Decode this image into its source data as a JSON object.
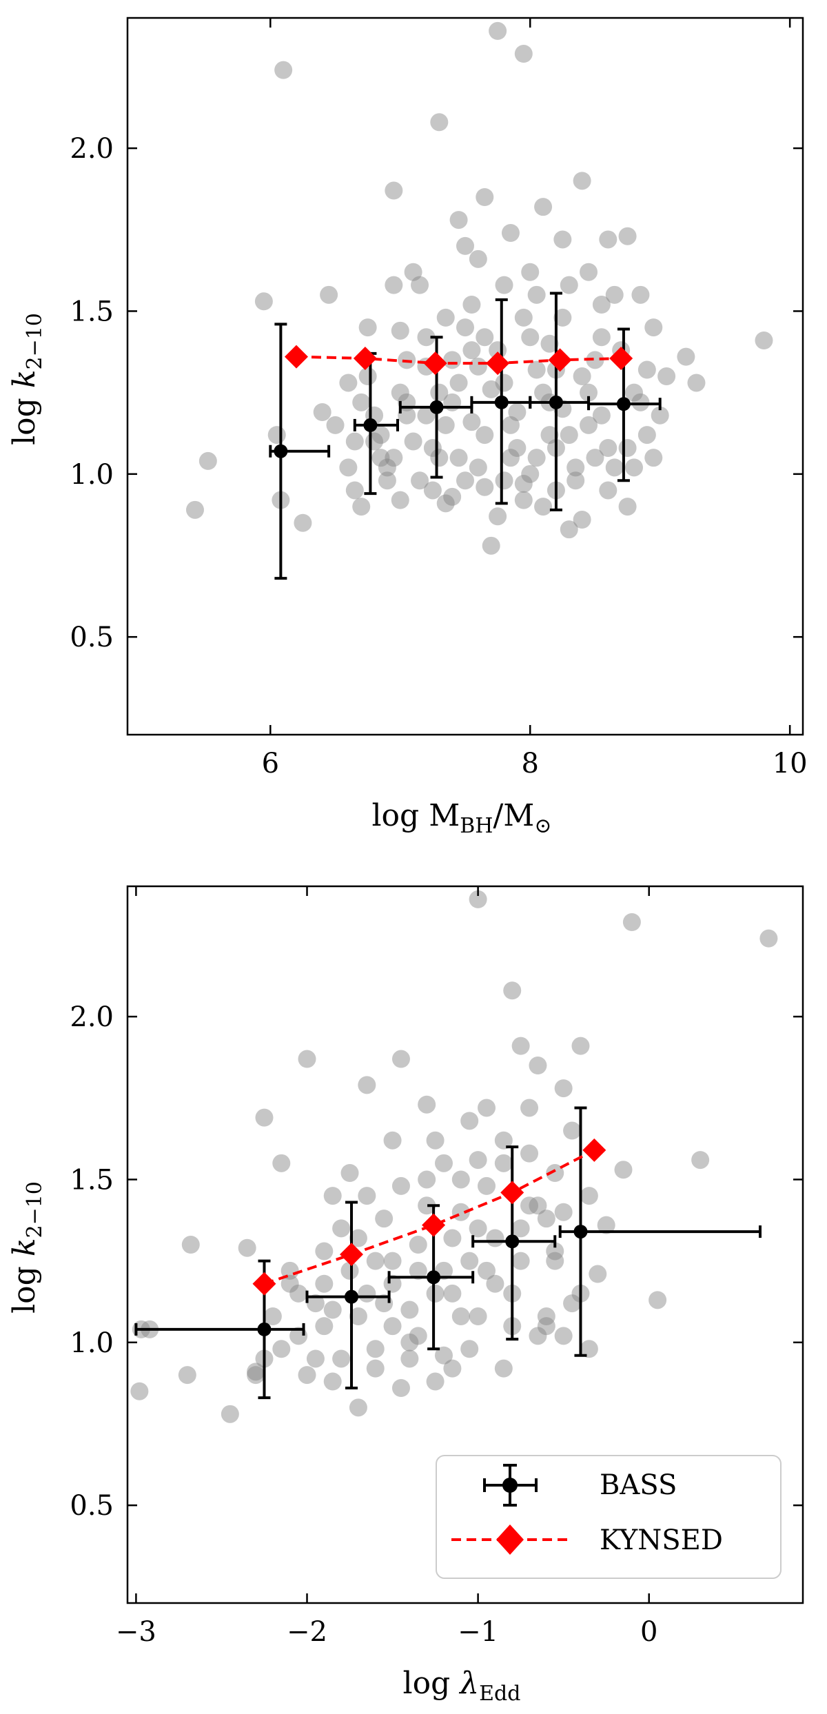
{
  "chart_data": [
    {
      "type": "scatter",
      "title": "",
      "xlabel": "log M_BH/M_⊙",
      "ylabel": "log k_2−10",
      "xlim": [
        4.9,
        10.1
      ],
      "ylim": [
        0.2,
        2.4
      ],
      "xticks": [
        6,
        8,
        10
      ],
      "xtick_labels": [
        "6",
        "8",
        "10"
      ],
      "yticks": [
        0.5,
        1.0,
        1.5,
        2.0
      ],
      "ytick_labels": [
        "0.5",
        "1.0",
        "1.5",
        "2.0"
      ],
      "scatter_points": [
        [
          5.42,
          0.89
        ],
        [
          5.52,
          1.04
        ],
        [
          5.95,
          1.53
        ],
        [
          6.1,
          2.24
        ],
        [
          6.05,
          1.12
        ],
        [
          6.08,
          0.92
        ],
        [
          6.25,
          0.85
        ],
        [
          6.45,
          1.55
        ],
        [
          6.4,
          1.19
        ],
        [
          6.5,
          1.15
        ],
        [
          6.6,
          1.02
        ],
        [
          6.65,
          0.95
        ],
        [
          6.7,
          1.22
        ],
        [
          6.75,
          1.3
        ],
        [
          6.8,
          1.1
        ],
        [
          6.85,
          1.05
        ],
        [
          6.9,
          0.98
        ],
        [
          6.95,
          1.58
        ],
        [
          7.0,
          1.25
        ],
        [
          7.05,
          1.35
        ],
        [
          7.1,
          1.62
        ],
        [
          7.15,
          1.58
        ],
        [
          7.2,
          1.18
        ],
        [
          7.25,
          1.08
        ],
        [
          7.3,
          1.05
        ],
        [
          7.35,
          0.91
        ],
        [
          7.4,
          1.22
        ],
        [
          7.45,
          1.28
        ],
        [
          7.5,
          1.45
        ],
        [
          7.55,
          1.52
        ],
        [
          7.6,
          1.02
        ],
        [
          7.65,
          0.96
        ],
        [
          7.7,
          0.78
        ],
        [
          7.75,
          1.38
        ],
        [
          7.8,
          1.28
        ],
        [
          7.85,
          1.15
        ],
        [
          7.9,
          1.08
        ],
        [
          7.95,
          0.97
        ],
        [
          8.0,
          1.42
        ],
        [
          8.05,
          1.55
        ],
        [
          8.1,
          0.9
        ],
        [
          8.15,
          1.22
        ],
        [
          8.2,
          1.32
        ],
        [
          8.25,
          1.48
        ],
        [
          8.3,
          1.12
        ],
        [
          8.35,
          1.02
        ],
        [
          8.4,
          0.86
        ],
        [
          8.45,
          1.25
        ],
        [
          8.5,
          1.35
        ],
        [
          8.55,
          1.18
        ],
        [
          8.6,
          0.95
        ],
        [
          8.65,
          1.55
        ],
        [
          8.7,
          1.38
        ],
        [
          8.75,
          1.08
        ],
        [
          8.8,
          1.02
        ],
        [
          8.85,
          1.22
        ],
        [
          8.9,
          1.12
        ],
        [
          8.95,
          1.05
        ],
        [
          9.05,
          1.3
        ],
        [
          9.2,
          1.36
        ],
        [
          9.28,
          1.28
        ],
        [
          9.8,
          1.41
        ],
        [
          7.3,
          2.08
        ],
        [
          7.75,
          2.36
        ],
        [
          7.95,
          2.29
        ],
        [
          7.65,
          1.85
        ],
        [
          7.85,
          1.74
        ],
        [
          8.1,
          1.82
        ],
        [
          8.25,
          1.72
        ],
        [
          8.4,
          1.9
        ],
        [
          7.5,
          1.7
        ],
        [
          7.6,
          1.66
        ],
        [
          6.95,
          1.87
        ],
        [
          8.45,
          1.62
        ],
        [
          8.6,
          1.72
        ],
        [
          8.75,
          1.73
        ],
        [
          7.45,
          1.78
        ],
        [
          8.0,
          1.62
        ],
        [
          8.3,
          1.58
        ],
        [
          8.55,
          1.52
        ],
        [
          7.8,
          1.58
        ],
        [
          8.95,
          1.45
        ],
        [
          8.15,
          1.4
        ],
        [
          7.35,
          1.48
        ],
        [
          7.55,
          1.38
        ],
        [
          7.0,
          1.44
        ],
        [
          6.75,
          1.45
        ],
        [
          7.2,
          1.33
        ],
        [
          6.6,
          1.28
        ],
        [
          7.05,
          1.18
        ],
        [
          6.85,
          1.12
        ],
        [
          7.65,
          1.12
        ],
        [
          7.85,
          1.05
        ],
        [
          8.05,
          1.05
        ],
        [
          8.2,
          1.08
        ],
        [
          8.45,
          1.15
        ],
        [
          8.65,
          1.02
        ],
        [
          8.35,
          0.98
        ],
        [
          7.95,
          0.92
        ],
        [
          7.75,
          0.87
        ],
        [
          7.4,
          0.93
        ],
        [
          7.15,
          0.98
        ],
        [
          6.9,
          1.02
        ],
        [
          6.7,
          0.9
        ],
        [
          7.25,
          0.95
        ],
        [
          7.55,
          1.16
        ],
        [
          7.9,
          1.19
        ],
        [
          8.1,
          1.25
        ],
        [
          8.25,
          1.2
        ],
        [
          7.05,
          1.22
        ],
        [
          7.35,
          1.15
        ],
        [
          8.5,
          1.05
        ],
        [
          8.8,
          1.25
        ],
        [
          8.9,
          1.32
        ],
        [
          7.45,
          1.05
        ],
        [
          7.7,
          1.26
        ],
        [
          7.6,
          1.33
        ],
        [
          8.0,
          1.0
        ],
        [
          8.3,
          0.83
        ],
        [
          8.75,
          0.9
        ],
        [
          7.8,
          0.98
        ],
        [
          6.8,
          1.18
        ],
        [
          7.1,
          1.1
        ],
        [
          7.5,
          0.98
        ],
        [
          8.15,
          1.12
        ],
        [
          8.6,
          1.08
        ],
        [
          9.0,
          1.18
        ],
        [
          8.4,
          1.3
        ],
        [
          7.3,
          1.25
        ],
        [
          6.95,
          1.05
        ],
        [
          7.65,
          1.42
        ],
        [
          7.95,
          1.48
        ],
        [
          8.2,
          0.95
        ],
        [
          7.0,
          0.92
        ],
        [
          8.05,
          1.32
        ],
        [
          7.4,
          1.35
        ],
        [
          8.85,
          1.55
        ],
        [
          8.55,
          1.42
        ],
        [
          7.2,
          1.42
        ],
        [
          6.65,
          1.1
        ]
      ],
      "series": [
        {
          "name": "BASS",
          "x": [
            6.08,
            6.77,
            7.28,
            7.78,
            8.2,
            8.72
          ],
          "y": [
            1.07,
            1.15,
            1.205,
            1.22,
            1.22,
            1.215
          ],
          "xerr_low": [
            6.0,
            6.65,
            7.0,
            7.55,
            8.0,
            8.45
          ],
          "xerr_high": [
            6.45,
            6.98,
            7.55,
            8.0,
            8.45,
            9.0
          ],
          "yerr_low": [
            0.68,
            0.94,
            0.99,
            0.91,
            0.89,
            0.98
          ],
          "yerr_high": [
            1.46,
            1.37,
            1.42,
            1.535,
            1.555,
            1.445
          ]
        },
        {
          "name": "KYNSED",
          "x": [
            6.2,
            6.73,
            7.27,
            7.75,
            8.23,
            8.7
          ],
          "y": [
            1.36,
            1.355,
            1.34,
            1.34,
            1.35,
            1.355
          ]
        }
      ]
    },
    {
      "type": "scatter",
      "title": "",
      "xlabel": "log λ_Edd",
      "ylabel": "log k_2−10",
      "xlim": [
        -3.05,
        0.9
      ],
      "ylim": [
        0.2,
        2.4
      ],
      "xticks": [
        -3,
        -2,
        -1,
        0
      ],
      "xtick_labels": [
        "−3",
        "−2",
        "−1",
        "0"
      ],
      "yticks": [
        0.5,
        1.0,
        1.5,
        2.0
      ],
      "ytick_labels": [
        "0.5",
        "1.0",
        "1.5",
        "2.0"
      ],
      "scatter_points": [
        [
          -2.98,
          0.85
        ],
        [
          -2.92,
          1.04
        ],
        [
          -2.97,
          1.04
        ],
        [
          -2.7,
          0.9
        ],
        [
          -2.68,
          1.3
        ],
        [
          -2.45,
          0.78
        ],
        [
          -2.35,
          1.29
        ],
        [
          -2.3,
          0.91
        ],
        [
          -2.25,
          1.69
        ],
        [
          -2.15,
          1.55
        ],
        [
          -2.1,
          1.22
        ],
        [
          -2.05,
          1.02
        ],
        [
          -2.0,
          1.87
        ],
        [
          -1.95,
          0.95
        ],
        [
          -1.9,
          1.18
        ],
        [
          -1.85,
          1.1
        ],
        [
          -1.8,
          1.35
        ],
        [
          -1.75,
          1.52
        ],
        [
          -1.7,
          0.8
        ],
        [
          -1.65,
          1.79
        ],
        [
          -1.6,
          1.25
        ],
        [
          -1.55,
          1.12
        ],
        [
          -1.5,
          1.05
        ],
        [
          -1.45,
          1.87
        ],
        [
          -1.4,
          0.95
        ],
        [
          -1.35,
          1.3
        ],
        [
          -1.3,
          1.73
        ],
        [
          -1.25,
          1.15
        ],
        [
          -1.2,
          1.55
        ],
        [
          -1.15,
          0.92
        ],
        [
          -1.1,
          1.4
        ],
        [
          -1.05,
          1.25
        ],
        [
          -1.0,
          1.56
        ],
        [
          -0.95,
          1.72
        ],
        [
          -0.9,
          1.18
        ],
        [
          -0.85,
          1.55
        ],
        [
          -0.8,
          2.08
        ],
        [
          -0.75,
          1.91
        ],
        [
          -0.7,
          1.72
        ],
        [
          -0.65,
          1.85
        ],
        [
          -0.6,
          1.05
        ],
        [
          -0.55,
          1.25
        ],
        [
          -0.5,
          1.78
        ],
        [
          -0.45,
          1.65
        ],
        [
          -0.4,
          1.91
        ],
        [
          -0.35,
          0.98
        ],
        [
          -0.3,
          1.21
        ],
        [
          -0.25,
          1.36
        ],
        [
          -0.15,
          1.53
        ],
        [
          -0.1,
          2.29
        ],
        [
          0.05,
          1.13
        ],
        [
          0.3,
          1.56
        ],
        [
          0.7,
          2.24
        ],
        [
          -1.0,
          2.36
        ],
        [
          -2.3,
          0.9
        ],
        [
          -2.15,
          0.98
        ],
        [
          -1.95,
          1.12
        ],
        [
          -1.85,
          0.88
        ],
        [
          -1.7,
          1.08
        ],
        [
          -1.6,
          0.98
        ],
        [
          -1.55,
          1.38
        ],
        [
          -1.45,
          0.86
        ],
        [
          -1.35,
          1.02
        ],
        [
          -1.3,
          1.5
        ],
        [
          -1.2,
          1.22
        ],
        [
          -1.1,
          1.08
        ],
        [
          -1.05,
          0.98
        ],
        [
          -0.9,
          1.32
        ],
        [
          -0.85,
          0.92
        ],
        [
          -0.7,
          1.42
        ],
        [
          -0.65,
          1.02
        ],
        [
          -0.55,
          1.52
        ],
        [
          -0.45,
          1.12
        ],
        [
          -2.2,
          1.08
        ],
        [
          -2.05,
          1.15
        ],
        [
          -1.9,
          1.28
        ],
        [
          -1.75,
          1.22
        ],
        [
          -1.65,
          1.15
        ],
        [
          -1.5,
          1.25
        ],
        [
          -1.4,
          1.1
        ],
        [
          -1.25,
          0.88
        ],
        [
          -1.15,
          1.32
        ],
        [
          -1.0,
          1.35
        ],
        [
          -0.8,
          1.05
        ],
        [
          -0.75,
          1.25
        ],
        [
          -0.6,
          1.38
        ],
        [
          -0.5,
          1.02
        ],
        [
          -0.4,
          1.15
        ],
        [
          -1.85,
          1.45
        ],
        [
          -1.65,
          1.45
        ],
        [
          -1.45,
          1.48
        ],
        [
          -1.3,
          1.42
        ],
        [
          -1.1,
          1.5
        ],
        [
          -0.95,
          1.48
        ],
        [
          -0.7,
          1.58
        ],
        [
          -0.55,
          1.28
        ],
        [
          -2.0,
          0.9
        ],
        [
          -1.8,
          0.95
        ],
        [
          -1.6,
          0.92
        ],
        [
          -1.4,
          1.0
        ],
        [
          -1.2,
          0.96
        ],
        [
          -1.0,
          1.08
        ],
        [
          -0.8,
          1.15
        ],
        [
          -0.6,
          1.08
        ],
        [
          -2.25,
          0.95
        ],
        [
          -2.1,
          1.18
        ],
        [
          -1.9,
          1.05
        ],
        [
          -1.7,
          1.32
        ],
        [
          -1.5,
          1.18
        ],
        [
          -1.35,
          1.22
        ],
        [
          -1.15,
          1.15
        ],
        [
          -0.95,
          1.22
        ],
        [
          -0.75,
          1.35
        ],
        [
          -0.5,
          1.4
        ],
        [
          -0.35,
          1.45
        ],
        [
          -1.25,
          1.62
        ],
        [
          -1.05,
          1.68
        ],
        [
          -0.85,
          1.62
        ],
        [
          -1.5,
          1.62
        ],
        [
          -0.65,
          1.42
        ]
      ],
      "series": [
        {
          "name": "BASS",
          "x": [
            -2.25,
            -1.74,
            -1.26,
            -0.8,
            -0.4
          ],
          "y": [
            1.04,
            1.14,
            1.2,
            1.31,
            1.34
          ],
          "xerr_low": [
            -3.0,
            -2.0,
            -1.52,
            -1.03,
            -0.52
          ],
          "xerr_high": [
            -2.02,
            -1.52,
            -1.03,
            -0.55,
            0.65
          ],
          "yerr_low": [
            0.83,
            0.86,
            0.98,
            1.01,
            0.96
          ],
          "yerr_high": [
            1.25,
            1.43,
            1.42,
            1.6,
            1.72
          ]
        },
        {
          "name": "KYNSED",
          "x": [
            -2.25,
            -1.74,
            -1.26,
            -0.8,
            -0.32
          ],
          "y": [
            1.18,
            1.27,
            1.36,
            1.46,
            1.59
          ]
        }
      ],
      "legend": {
        "position": "lower-right",
        "entries": [
          "BASS",
          "KYNSED"
        ]
      }
    }
  ],
  "colors": {
    "scatter": "#808080",
    "bass": "#000000",
    "kynsed": "#ff0000"
  }
}
